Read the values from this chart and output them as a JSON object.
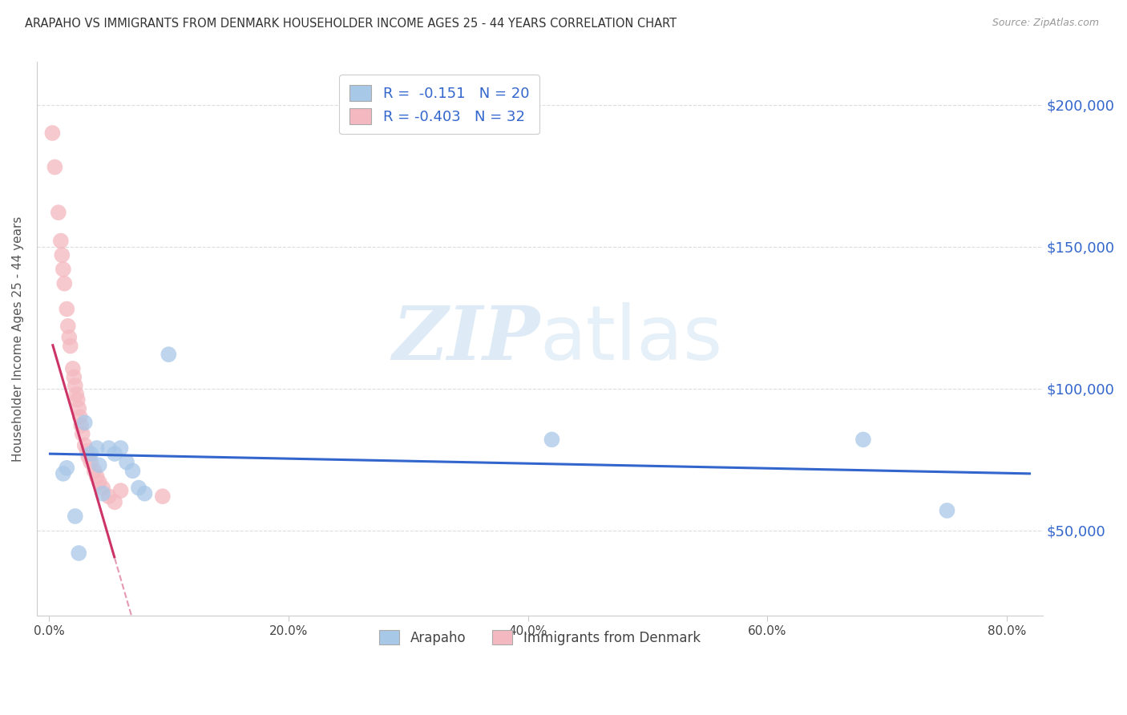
{
  "title": "ARAPAHO VS IMMIGRANTS FROM DENMARK HOUSEHOLDER INCOME AGES 25 - 44 YEARS CORRELATION CHART",
  "source": "Source: ZipAtlas.com",
  "ylabel": "Householder Income Ages 25 - 44 years",
  "xlabel_ticks": [
    "0.0%",
    "20.0%",
    "40.0%",
    "60.0%",
    "80.0%"
  ],
  "xlabel_vals": [
    0,
    20,
    40,
    60,
    80
  ],
  "ylabel_ticks": [
    "$50,000",
    "$100,000",
    "$150,000",
    "$200,000"
  ],
  "ylabel_vals": [
    50000,
    100000,
    150000,
    200000
  ],
  "xlim": [
    -1,
    83
  ],
  "ylim": [
    20000,
    215000
  ],
  "legend_blue": "R =  -0.151   N = 20",
  "legend_pink": "R = -0.403   N = 32",
  "legend_label_blue": "Arapaho",
  "legend_label_pink": "Immigrants from Denmark",
  "watermark_zip": "ZIP",
  "watermark_atlas": "atlas",
  "blue_color": "#a8c8e8",
  "pink_color": "#f4b8c0",
  "trend_blue": "#3366cc",
  "trend_pink": "#cc3366",
  "grid_color": "#dddddd",
  "arapaho_x": [
    1.2,
    1.5,
    2.2,
    2.5,
    3.0,
    3.5,
    4.0,
    4.2,
    4.5,
    5.0,
    5.5,
    6.0,
    6.5,
    7.0,
    7.5,
    8.0,
    10.0,
    68.0,
    75.0,
    42.0
  ],
  "arapaho_y": [
    70000,
    72000,
    55000,
    42000,
    88000,
    77000,
    79000,
    73000,
    63000,
    79000,
    77000,
    79000,
    74000,
    71000,
    65000,
    63000,
    112000,
    82000,
    57000,
    82000
  ],
  "denmark_x": [
    0.3,
    0.5,
    0.8,
    1.0,
    1.1,
    1.2,
    1.3,
    1.5,
    1.6,
    1.7,
    1.8,
    2.0,
    2.1,
    2.2,
    2.3,
    2.4,
    2.5,
    2.6,
    2.7,
    2.8,
    3.0,
    3.2,
    3.3,
    3.5,
    3.8,
    4.0,
    4.2,
    4.5,
    5.0,
    5.5,
    6.0,
    9.5
  ],
  "denmark_y": [
    190000,
    178000,
    162000,
    152000,
    147000,
    142000,
    137000,
    128000,
    122000,
    118000,
    115000,
    107000,
    104000,
    101000,
    98000,
    96000,
    93000,
    90000,
    87000,
    84000,
    80000,
    78000,
    76000,
    74000,
    71000,
    69000,
    67000,
    65000,
    62000,
    60000,
    64000,
    62000
  ],
  "trend_blue_x0": 0,
  "trend_blue_y0": 77000,
  "trend_blue_x1": 82,
  "trend_blue_y1": 70000,
  "trend_pink_slope": -14500,
  "trend_pink_intercept": 120000,
  "trend_pink_solid_x0": 0.3,
  "trend_pink_solid_x1": 5.5,
  "trend_pink_dashed_x0": 5.5,
  "trend_pink_dashed_x1": 13.5
}
